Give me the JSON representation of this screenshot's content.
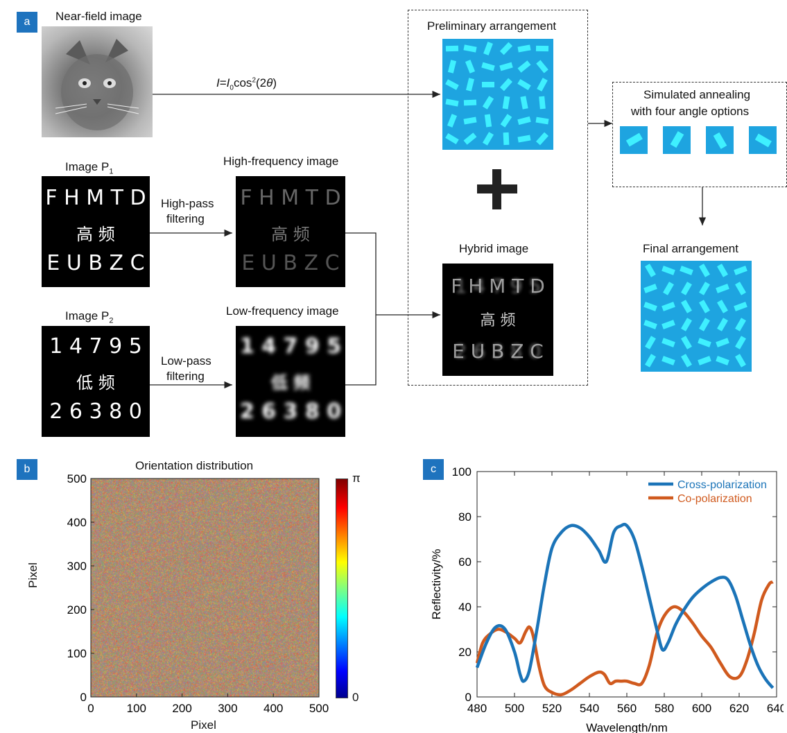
{
  "panel_a": {
    "badge": "a",
    "near_field_title": "Near-field image",
    "formula_text": "cos",
    "image_p1_title": "Image P",
    "image_p1_sub": "1",
    "image_p1_row1": "F H M T D",
    "image_p1_row2": "高  频",
    "image_p1_row3": "E U B Z C",
    "high_pass_label_1": "High-pass",
    "high_pass_label_2": "filtering",
    "high_freq_title": "High-frequency image",
    "image_p2_title": "Image P",
    "image_p2_sub": "2",
    "image_p2_row1": "1 4 7 9 5",
    "image_p2_row2": "低  频",
    "image_p2_row3": "2 6 3 8 0",
    "low_pass_label_1": "Low-pass",
    "low_pass_label_2": "filtering",
    "low_freq_title": "Low-frequency image",
    "preliminary_title": "Preliminary arrangement",
    "plus_sign": "+",
    "hybrid_title": "Hybrid image",
    "annealing_line1": "Simulated annealing",
    "annealing_line2": "with four angle options",
    "final_title": "Final arrangement",
    "metasurface_color": "#1eb4ec",
    "tile_bg_color": "#1ea4e0"
  },
  "panel_b": {
    "badge": "b",
    "title": "Orientation distribution",
    "xlabel": "Pixel",
    "ylabel": "Pixel",
    "xticks": [
      "0",
      "100",
      "200",
      "300",
      "400",
      "500"
    ],
    "yticks": [
      "0",
      "100",
      "200",
      "300",
      "400",
      "500"
    ],
    "colorbar_top": "π",
    "colorbar_bottom": "0"
  },
  "chart_data": [
    {
      "type": "heatmap",
      "title": "Orientation distribution",
      "xlabel": "Pixel",
      "ylabel": "Pixel",
      "xlim": [
        0,
        500
      ],
      "ylim": [
        0,
        500
      ],
      "colorbar_range": [
        "0",
        "π"
      ],
      "colormap": "jet"
    },
    {
      "type": "line",
      "title": "",
      "xlabel": "Wavelength/nm",
      "ylabel": "Reflectivity/%",
      "xlim": [
        480,
        640
      ],
      "ylim": [
        0,
        100
      ],
      "xticks": [
        480,
        500,
        520,
        540,
        560,
        580,
        600,
        620,
        640
      ],
      "yticks": [
        0,
        20,
        40,
        60,
        80,
        100
      ],
      "legend_position": "top-right",
      "series": [
        {
          "name": "Cross-polarization",
          "color": "#1b74b8",
          "x": [
            480,
            485,
            490,
            495,
            500,
            503,
            505,
            508,
            512,
            516,
            520,
            525,
            530,
            535,
            540,
            545,
            549,
            553,
            557,
            560,
            564,
            568,
            572,
            576,
            579,
            582,
            586,
            590,
            595,
            600,
            605,
            610,
            614,
            618,
            622,
            626,
            630,
            634,
            638
          ],
          "y": [
            13,
            24,
            31,
            30,
            20,
            10,
            7,
            12,
            30,
            50,
            66,
            73,
            76,
            75,
            71,
            65,
            60,
            73,
            76,
            76,
            70,
            58,
            44,
            30,
            21,
            24,
            32,
            38,
            44,
            48,
            51,
            53,
            52,
            45,
            34,
            23,
            14,
            8,
            4
          ]
        },
        {
          "name": "Co-polarization",
          "color": "#d05a1e",
          "x": [
            480,
            483,
            487,
            491,
            495,
            500,
            503,
            506,
            508,
            510,
            513,
            516,
            520,
            525,
            530,
            535,
            540,
            545,
            548,
            551,
            554,
            557,
            560,
            564,
            568,
            572,
            576,
            580,
            585,
            590,
            595,
            600,
            605,
            610,
            615,
            620,
            624,
            628,
            632,
            636,
            638
          ],
          "y": [
            15,
            24,
            28,
            30,
            29,
            26,
            24,
            29,
            31,
            27,
            14,
            5,
            2,
            1,
            3,
            6,
            9,
            11,
            10,
            6,
            7,
            7,
            7,
            6,
            6,
            14,
            28,
            36,
            40,
            38,
            33,
            27,
            22,
            15,
            9,
            9,
            16,
            28,
            43,
            50,
            51
          ]
        }
      ]
    }
  ],
  "panel_c": {
    "badge": "c",
    "xlabel": "Wavelength/nm",
    "ylabel": "Reflectivity/%",
    "legend_cross": "Cross-polarization",
    "legend_co": "Co-polarization",
    "xticks": [
      "480",
      "500",
      "520",
      "540",
      "560",
      "580",
      "600",
      "620",
      "640"
    ],
    "yticks": [
      "0",
      "20",
      "40",
      "60",
      "80",
      "100"
    ]
  }
}
